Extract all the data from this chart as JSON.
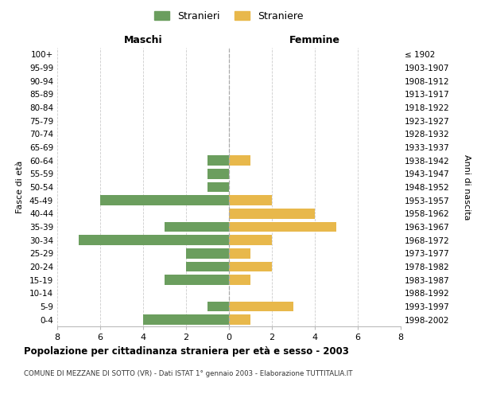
{
  "age_groups": [
    "0-4",
    "5-9",
    "10-14",
    "15-19",
    "20-24",
    "25-29",
    "30-34",
    "35-39",
    "40-44",
    "45-49",
    "50-54",
    "55-59",
    "60-64",
    "65-69",
    "70-74",
    "75-79",
    "80-84",
    "85-89",
    "90-94",
    "95-99",
    "100+"
  ],
  "birth_years": [
    "1998-2002",
    "1993-1997",
    "1988-1992",
    "1983-1987",
    "1978-1982",
    "1973-1977",
    "1968-1972",
    "1963-1967",
    "1958-1962",
    "1953-1957",
    "1948-1952",
    "1943-1947",
    "1938-1942",
    "1933-1937",
    "1928-1932",
    "1923-1927",
    "1918-1922",
    "1913-1917",
    "1908-1912",
    "1903-1907",
    "≤ 1902"
  ],
  "maschi": [
    4,
    1,
    0,
    3,
    2,
    2,
    7,
    3,
    0,
    6,
    1,
    1,
    1,
    0,
    0,
    0,
    0,
    0,
    0,
    0,
    0
  ],
  "femmine": [
    1,
    3,
    0,
    1,
    2,
    1,
    2,
    5,
    4,
    2,
    0,
    0,
    1,
    0,
    0,
    0,
    0,
    0,
    0,
    0,
    0
  ],
  "male_color": "#6b9e5e",
  "female_color": "#e8b84b",
  "title": "Popolazione per cittadinanza straniera per età e sesso - 2003",
  "subtitle": "COMUNE DI MEZZANE DI SOTTO (VR) - Dati ISTAT 1° gennaio 2003 - Elaborazione TUTTITALIA.IT",
  "ylabel_left": "Fasce di età",
  "ylabel_right": "Anni di nascita",
  "xlabel_maschi": "Maschi",
  "xlabel_femmine": "Femmine",
  "legend_stranieri": "Stranieri",
  "legend_straniere": "Straniere",
  "xlim": 8,
  "bg_color": "#ffffff",
  "grid_color": "#cccccc",
  "bar_height": 0.75
}
